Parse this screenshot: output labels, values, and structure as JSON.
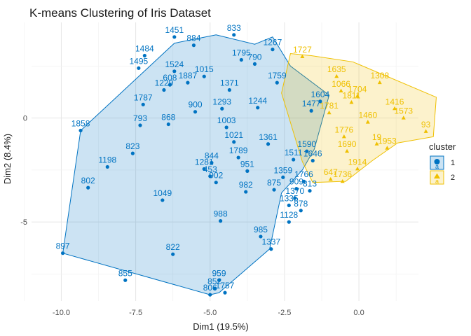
{
  "chart_data": {
    "type": "scatter",
    "title": "K-means Clustering of Iris Dataset",
    "xlabel": "Dim1 (19.5%)",
    "ylabel": "Dim2 (8.4%)",
    "xlim": [
      -11,
      2
    ],
    "ylim": [
      -8.8,
      4.6
    ],
    "xticks": [
      -10.0,
      -7.5,
      -5.0,
      -2.5,
      0.0
    ],
    "xtick_labels": [
      "-10.0",
      "-7.5",
      "-5.0",
      "-2.5",
      "0.0"
    ],
    "yticks": [
      -5,
      0
    ],
    "ytick_labels": [
      "-5",
      "0"
    ],
    "grid": true,
    "legend": {
      "title": "cluster",
      "position": "right"
    },
    "series": [
      {
        "name": "1",
        "color": "#0073C2",
        "marker": "circle",
        "hull": [
          [
            -9.95,
            -6.5
          ],
          [
            -9.35,
            -0.6
          ],
          [
            -6.2,
            3.6
          ],
          [
            -4.8,
            4.0
          ],
          [
            -3.5,
            3.55
          ],
          [
            -2.9,
            3.9
          ],
          [
            -2.3,
            2.5
          ],
          [
            -1.0,
            1.1
          ],
          [
            -1.5,
            -1.5
          ],
          [
            -1.9,
            -2.5
          ],
          [
            -2.6,
            -3.6
          ],
          [
            -3.0,
            -6.3
          ],
          [
            -4.7,
            -8.4
          ],
          [
            -5.0,
            -8.5
          ]
        ],
        "points": [
          {
            "x": -9.35,
            "y": -0.6,
            "label": "1858"
          },
          {
            "x": -9.1,
            "y": -3.35,
            "label": "802"
          },
          {
            "x": -9.95,
            "y": -6.5,
            "label": "897"
          },
          {
            "x": -8.45,
            "y": -2.35,
            "label": "1198"
          },
          {
            "x": -7.85,
            "y": -7.8,
            "label": "855"
          },
          {
            "x": -7.6,
            "y": -1.7,
            "label": "823"
          },
          {
            "x": -7.35,
            "y": -0.35,
            "label": "793"
          },
          {
            "x": -7.25,
            "y": 0.65,
            "label": "1787"
          },
          {
            "x": -7.4,
            "y": 2.4,
            "label": "1495"
          },
          {
            "x": -7.2,
            "y": 3.0,
            "label": "1484"
          },
          {
            "x": -6.55,
            "y": 1.35,
            "label": "1229"
          },
          {
            "x": -6.4,
            "y": -0.3,
            "label": "868"
          },
          {
            "x": -6.35,
            "y": 1.6,
            "label": "608"
          },
          {
            "x": -6.2,
            "y": 2.25,
            "label": "1524"
          },
          {
            "x": -6.6,
            "y": -3.95,
            "label": "1049"
          },
          {
            "x": -6.25,
            "y": -6.55,
            "label": "822"
          },
          {
            "x": -6.2,
            "y": 3.9,
            "label": "1451"
          },
          {
            "x": -5.55,
            "y": 3.5,
            "label": "884"
          },
          {
            "x": -5.75,
            "y": 1.7,
            "label": "1887"
          },
          {
            "x": -5.5,
            "y": 0.3,
            "label": "900"
          },
          {
            "x": -5.2,
            "y": -2.45,
            "label": "1281"
          },
          {
            "x": -5.0,
            "y": -2.8,
            "label": "453"
          },
          {
            "x": -4.95,
            "y": -2.15,
            "label": "844"
          },
          {
            "x": -4.8,
            "y": -3.1,
            "label": "902"
          },
          {
            "x": -4.65,
            "y": -4.95,
            "label": "988"
          },
          {
            "x": -4.7,
            "y": -7.8,
            "label": "959"
          },
          {
            "x": -4.85,
            "y": -8.2,
            "label": "852"
          },
          {
            "x": -5.0,
            "y": -8.5,
            "label": "806"
          },
          {
            "x": -4.5,
            "y": -8.4,
            "label": "1757"
          },
          {
            "x": -3.8,
            "y": -3.55,
            "label": "982"
          },
          {
            "x": -3.3,
            "y": -5.7,
            "label": "985"
          },
          {
            "x": -2.95,
            "y": -6.3,
            "label": "1337"
          },
          {
            "x": -2.85,
            "y": -3.45,
            "label": "875"
          },
          {
            "x": -2.55,
            "y": -2.85,
            "label": "1359"
          },
          {
            "x": -2.35,
            "y": -4.2,
            "label": "1335"
          },
          {
            "x": -2.35,
            "y": -5.0,
            "label": "1128"
          },
          {
            "x": -1.95,
            "y": -4.45,
            "label": "878"
          },
          {
            "x": -2.15,
            "y": -3.85,
            "label": "1370"
          },
          {
            "x": -1.65,
            "y": -3.5,
            "label": "813"
          },
          {
            "x": -1.85,
            "y": -3.05,
            "label": "1766"
          },
          {
            "x": -2.1,
            "y": -3.4,
            "label": "909"
          },
          {
            "x": -4.2,
            "y": 4.0,
            "label": "833"
          },
          {
            "x": -4.35,
            "y": 1.35,
            "label": "1371"
          },
          {
            "x": -4.6,
            "y": 0.45,
            "label": "1293"
          },
          {
            "x": -4.45,
            "y": -0.45,
            "label": "1003"
          },
          {
            "x": -4.2,
            "y": -1.15,
            "label": "1021"
          },
          {
            "x": -4.05,
            "y": -1.9,
            "label": "1789"
          },
          {
            "x": -3.75,
            "y": -2.55,
            "label": "951"
          },
          {
            "x": -3.4,
            "y": 0.5,
            "label": "1244"
          },
          {
            "x": -3.5,
            "y": 2.6,
            "label": "790"
          },
          {
            "x": -2.9,
            "y": 3.3,
            "label": "1267"
          },
          {
            "x": -2.75,
            "y": 1.7,
            "label": "1759"
          },
          {
            "x": -3.05,
            "y": -1.25,
            "label": "1361"
          },
          {
            "x": -2.2,
            "y": -2.0,
            "label": "1511"
          },
          {
            "x": -1.75,
            "y": -1.6,
            "label": "1590"
          },
          {
            "x": -1.55,
            "y": -2.05,
            "label": "1646"
          },
          {
            "x": -5.2,
            "y": 2.0,
            "label": "1015"
          },
          {
            "x": -3.95,
            "y": 2.8,
            "label": "1795"
          },
          {
            "x": -1.6,
            "y": 0.35,
            "label": "1477"
          },
          {
            "x": -1.3,
            "y": 0.8,
            "label": "1604"
          }
        ]
      },
      {
        "name": "2",
        "color": "#EFC000",
        "marker": "triangle",
        "hull": [
          [
            -1.55,
            -3.1
          ],
          [
            -1.9,
            -2.1
          ],
          [
            -2.6,
            1.2
          ],
          [
            -2.3,
            3.1
          ],
          [
            -1.6,
            3.0
          ],
          [
            -0.2,
            2.7
          ],
          [
            2.6,
            1.0
          ],
          [
            2.5,
            -0.9
          ],
          [
            1.3,
            -1.2
          ],
          [
            0.45,
            -2.05
          ],
          [
            -0.45,
            -3.05
          ],
          [
            -0.6,
            -3.05
          ]
        ],
        "points": [
          {
            "x": -0.95,
            "y": -2.95,
            "label": "647"
          },
          {
            "x": -0.55,
            "y": -3.05,
            "label": "1736"
          },
          {
            "x": -0.05,
            "y": -2.45,
            "label": "1914"
          },
          {
            "x": 0.6,
            "y": -1.25,
            "label": "19"
          },
          {
            "x": -0.4,
            "y": -1.6,
            "label": "1690"
          },
          {
            "x": -0.5,
            "y": -0.9,
            "label": "1776"
          },
          {
            "x": -1.0,
            "y": 0.25,
            "label": "1781"
          },
          {
            "x": -0.6,
            "y": 1.3,
            "label": "1066"
          },
          {
            "x": -0.05,
            "y": 1.05,
            "label": "1704"
          },
          {
            "x": 0.7,
            "y": 1.7,
            "label": "1308"
          },
          {
            "x": 1.5,
            "y": 0.0,
            "label": "1573"
          },
          {
            "x": 2.25,
            "y": -0.65,
            "label": "93"
          },
          {
            "x": 1.2,
            "y": 0.45,
            "label": "1416"
          },
          {
            "x": -1.9,
            "y": 2.95,
            "label": "1727"
          },
          {
            "x": -0.75,
            "y": 2.0,
            "label": "1635"
          },
          {
            "x": 0.3,
            "y": -0.2,
            "label": "1460"
          },
          {
            "x": 0.95,
            "y": -1.45,
            "label": "1953"
          },
          {
            "x": -0.25,
            "y": 0.75,
            "label": "1811"
          }
        ]
      }
    ]
  }
}
